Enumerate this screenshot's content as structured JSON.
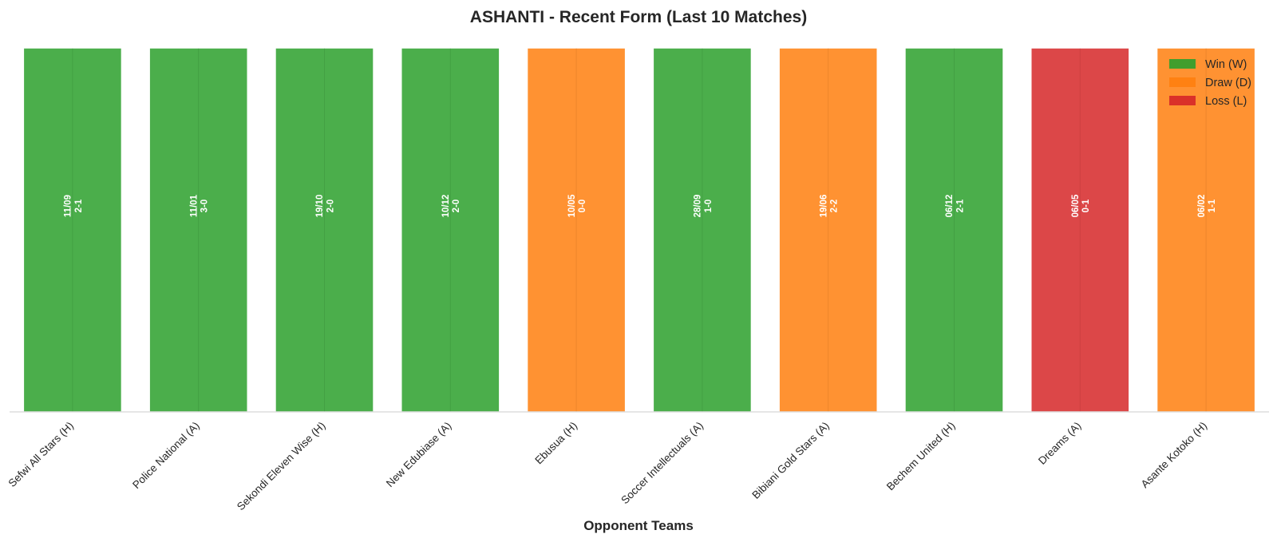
{
  "chart_data": {
    "type": "bar",
    "title": "ASHANTI - Recent Form (Last 10 Matches)",
    "xlabel": "Opponent Teams",
    "ylabel": "",
    "ylim": [
      0,
      1
    ],
    "grid": true,
    "legend_position": "top-right",
    "categories": [
      "Sefwi All Stars (H)",
      "Police National (A)",
      "Sekondi Eleven Wise (H)",
      "New Edubiase (A)",
      "Ebusua (H)",
      "Soccer Intellectuals (A)",
      "Bibiani Gold Stars (A)",
      "Bechem United (H)",
      "Dreams (A)",
      "Asante Kotoko (H)"
    ],
    "values": [
      1,
      1,
      1,
      1,
      1,
      1,
      1,
      1,
      1,
      1
    ],
    "results": [
      "W",
      "W",
      "W",
      "W",
      "D",
      "W",
      "D",
      "W",
      "L",
      "D"
    ],
    "dates": [
      "11/09",
      "11/01",
      "19/10",
      "10/12",
      "10/05",
      "28/09",
      "19/06",
      "06/12",
      "06/05",
      "06/02"
    ],
    "scores": [
      "2-1",
      "3-0",
      "2-0",
      "2-0",
      "0-0",
      "1-0",
      "2-2",
      "2-1",
      "0-1",
      "1-1"
    ],
    "legend": [
      {
        "key": "W",
        "label": "Win (W)",
        "color": "#2ca02c"
      },
      {
        "key": "D",
        "label": "Draw (D)",
        "color": "#ff7f0e"
      },
      {
        "key": "L",
        "label": "Loss (L)",
        "color": "#d62728"
      }
    ]
  }
}
